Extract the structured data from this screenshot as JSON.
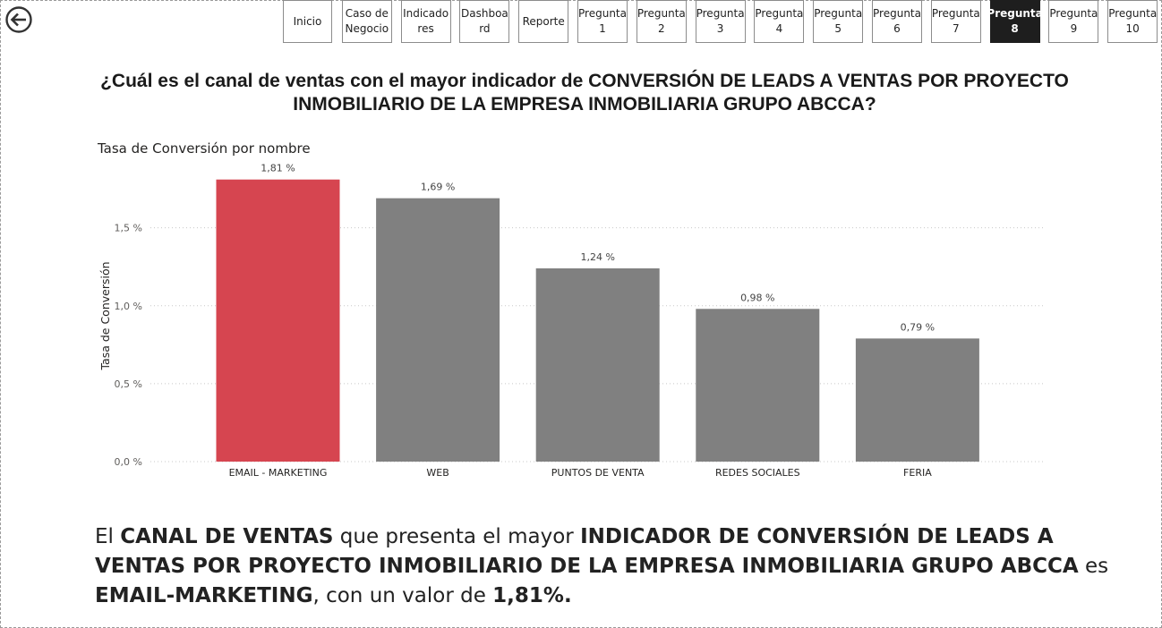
{
  "nav": [
    {
      "label": "Inicio",
      "active": false
    },
    {
      "label": "Caso de\nNegocio",
      "active": false
    },
    {
      "label": "Indicado\nres",
      "active": false
    },
    {
      "label": "Dashboa\nrd",
      "active": false
    },
    {
      "label": "Reporte",
      "active": false
    },
    {
      "label": "Pregunta\n1",
      "active": false
    },
    {
      "label": "Pregunta\n2",
      "active": false
    },
    {
      "label": "Pregunta\n3",
      "active": false
    },
    {
      "label": "Pregunta\n4",
      "active": false
    },
    {
      "label": "Pregunta\n5",
      "active": false
    },
    {
      "label": "Pregunta\n6",
      "active": false
    },
    {
      "label": "Pregunta\n7",
      "active": false
    },
    {
      "label": "Pregunta\n8",
      "active": true
    },
    {
      "label": "Pregunta\n9",
      "active": false
    },
    {
      "label": "Pregunta\n10",
      "active": false
    }
  ],
  "question": {
    "prefix": "¿Cuál es el canal de ventas con el mayor indicador de ",
    "emph": "CONVERSIÓN DE LEADS A VENTAS POR PROYECTO INMOBILIARIO DE LA EMPRESA INMOBILIARIA GRUPO ABCCA?"
  },
  "chart_data": {
    "type": "bar",
    "title": "Tasa de Conversión por nombre",
    "ylabel": "Tasa de Conversión",
    "xlabel": "",
    "categories": [
      "EMAIL - MARKETING",
      "WEB",
      "PUNTOS DE VENTA",
      "REDES SOCIALES",
      "FERIA"
    ],
    "values": [
      1.81,
      1.69,
      1.24,
      0.98,
      0.79
    ],
    "data_labels": [
      "1,81 %",
      "1,69 %",
      "1,24 %",
      "0,98 %",
      "0,79 %"
    ],
    "ylim": [
      0,
      1.9
    ],
    "yticks": [
      0,
      0.5,
      1.0,
      1.5
    ],
    "ytick_labels": [
      "0,0 %",
      "0,5 %",
      "1,0 %",
      "1,5 %"
    ],
    "colors": {
      "highlight": "#D64550",
      "default": "#808080"
    },
    "highlight_index": 0,
    "grid": true
  },
  "answer": {
    "p1": "El ",
    "b1": "CANAL DE VENTAS",
    "p2": " que presenta el mayor ",
    "b2": "INDICADOR DE CONVERSIÓN DE LEADS A VENTAS POR PROYECTO INMOBILIARIO DE LA EMPRESA INMOBILIARIA GRUPO ABCCA",
    "p3": " es ",
    "b3": "EMAIL-MARKETING",
    "p4": ", con un valor de ",
    "b4": "1,81%."
  }
}
